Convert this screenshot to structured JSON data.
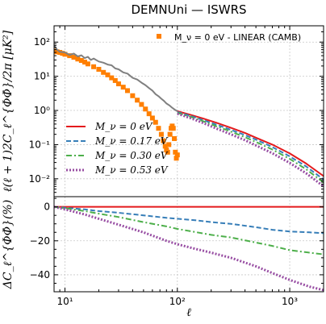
{
  "chart_data": {
    "title": "DEMNUni — ISWRS",
    "colors": {
      "massless": "#e41a1c",
      "nu017": "#377eb8",
      "nu030": "#4daf4a",
      "nu053": "#984ea3",
      "linear": "#ff7f00",
      "nbody_grey": "#808080"
    },
    "top_panel": {
      "type": "line",
      "ylabel": "ℓ(ℓ + 1)2C_ℓ^{ΦΦ̇}/2π [μK²]",
      "xscale": "log",
      "yscale": "log",
      "xlim": [
        8,
        2000
      ],
      "ylim": [
        0.003,
        300
      ],
      "x_ticks": [
        "10¹",
        "10²",
        "10³"
      ],
      "y_ticks": [
        "10⁻²",
        "10⁻¹",
        "10⁰",
        "10¹",
        "10²"
      ],
      "grid": true,
      "legend_upper": "M_ν = 0 eV - LINEAR (CAMB)",
      "legend_lower": [
        "M_ν = 0 eV",
        "M_ν = 0.17 eV",
        "M_ν = 0.30 eV",
        "M_ν = 0.53 eV"
      ],
      "series": [
        {
          "name": "M_ν = 0 eV - LINEAR (CAMB)",
          "style": "squares",
          "color_key": "linear",
          "x": [
            8,
            8.5,
            9,
            9.5,
            10,
            11,
            12,
            13,
            14,
            15,
            16,
            18,
            20,
            22,
            24,
            26,
            28,
            30,
            33,
            36,
            40,
            44,
            48,
            52,
            56,
            60,
            64,
            68,
            72,
            75,
            78,
            80,
            82,
            84,
            86,
            88,
            90,
            92,
            94,
            96,
            98,
            100
          ],
          "y": [
            55,
            52,
            50,
            47,
            44,
            40,
            36,
            32,
            29,
            26,
            23,
            19,
            16,
            13,
            11,
            9,
            7.5,
            6,
            4.8,
            3.8,
            2.7,
            2.0,
            1.5,
            1.1,
            0.8,
            0.6,
            0.45,
            0.3,
            0.2,
            0.13,
            0.09,
            0.07,
            0.06,
            0.1,
            0.2,
            0.3,
            0.35,
            0.3,
            0.15,
            0.06,
            0.04,
            0.05
          ]
        },
        {
          "name": "",
          "style": "solid",
          "color_key": "nbody_grey",
          "x": [
            8,
            8.5,
            9,
            10,
            11,
            12,
            13,
            14,
            15,
            16,
            17,
            18,
            20,
            22,
            24,
            26,
            28,
            30,
            33,
            36,
            40,
            44,
            48,
            52,
            56,
            60,
            64,
            68,
            72,
            76,
            80,
            85,
            90,
            95,
            100
          ],
          "y": [
            80,
            60,
            52,
            50,
            42,
            46,
            38,
            41,
            34,
            37,
            30,
            33,
            27,
            25,
            22,
            21,
            17,
            16,
            13,
            12,
            9,
            8,
            6.5,
            5.5,
            4.5,
            3.8,
            3.0,
            2.6,
            2.2,
            1.9,
            1.6,
            1.4,
            1.2,
            1.05,
            0.95
          ]
        },
        {
          "name": "M_ν = 0 eV",
          "style": "solid",
          "color_key": "massless",
          "x": [
            100,
            130,
            170,
            220,
            300,
            400,
            500,
            700,
            1000,
            1400,
            2000
          ],
          "y": [
            0.95,
            0.75,
            0.58,
            0.44,
            0.31,
            0.22,
            0.16,
            0.1,
            0.055,
            0.028,
            0.012
          ]
        },
        {
          "name": "M_ν = 0.17 eV",
          "style": "dashed",
          "color_key": "nu017",
          "x": [
            100,
            130,
            170,
            220,
            300,
            400,
            500,
            700,
            1000,
            1400,
            2000
          ],
          "y": [
            0.9,
            0.7,
            0.52,
            0.39,
            0.27,
            0.19,
            0.14,
            0.085,
            0.045,
            0.023,
            0.0095
          ]
        },
        {
          "name": "M_ν = 0.30 eV",
          "style": "dashdot",
          "color_key": "nu030",
          "x": [
            100,
            130,
            170,
            220,
            300,
            400,
            500,
            700,
            1000,
            1400,
            2000
          ],
          "y": [
            0.85,
            0.66,
            0.48,
            0.35,
            0.24,
            0.165,
            0.12,
            0.072,
            0.038,
            0.019,
            0.0078
          ]
        },
        {
          "name": "M_ν = 0.53 eV",
          "style": "dotted",
          "color_key": "nu053",
          "x": [
            100,
            130,
            170,
            220,
            300,
            400,
            500,
            700,
            1000,
            1400,
            2000
          ],
          "y": [
            0.8,
            0.6,
            0.43,
            0.3,
            0.2,
            0.135,
            0.095,
            0.056,
            0.029,
            0.0145,
            0.006
          ]
        }
      ]
    },
    "bottom_panel": {
      "type": "line",
      "xlabel": "ℓ",
      "ylabel": "ΔC_ℓ^{ΦΦ̇}(%)",
      "xscale": "log",
      "xlim": [
        8,
        2000
      ],
      "ylim": [
        -50,
        6
      ],
      "x_ticks": [
        "10¹",
        "10²",
        "10³"
      ],
      "y_ticks": [
        "0",
        "−20",
        "−40"
      ],
      "grid": true,
      "series": [
        {
          "name": "M_ν = 0 eV",
          "style": "solid",
          "color_key": "massless",
          "x": [
            8,
            2000
          ],
          "y": [
            0,
            0
          ]
        },
        {
          "name": "M_ν = 0.17 eV",
          "style": "dashed",
          "color_key": "nu017",
          "x": [
            8,
            10,
            15,
            20,
            30,
            50,
            80,
            100,
            150,
            200,
            300,
            500,
            700,
            1000,
            1500,
            2000
          ],
          "y": [
            0,
            -0.5,
            -1.5,
            -2.5,
            -3.5,
            -5,
            -6.5,
            -7,
            -8,
            -9,
            -10,
            -12,
            -13.5,
            -14.5,
            -15,
            -15.5
          ]
        },
        {
          "name": "M_ν = 0.30 eV",
          "style": "dashdot",
          "color_key": "nu030",
          "x": [
            8,
            10,
            15,
            20,
            30,
            50,
            80,
            100,
            150,
            200,
            300,
            500,
            700,
            1000,
            1500,
            2000
          ],
          "y": [
            0,
            -0.8,
            -2.5,
            -4,
            -6,
            -9,
            -11.5,
            -13,
            -15,
            -16.5,
            -18,
            -21,
            -23,
            -25.5,
            -27,
            -28
          ]
        },
        {
          "name": "M_ν = 0.53 eV",
          "style": "dotted",
          "color_key": "nu053",
          "x": [
            8,
            10,
            15,
            20,
            30,
            50,
            80,
            100,
            150,
            200,
            300,
            500,
            700,
            1000,
            1500,
            2000
          ],
          "y": [
            0,
            -1.5,
            -4.5,
            -7,
            -10.5,
            -15,
            -20,
            -22,
            -25,
            -27,
            -30,
            -35,
            -39,
            -43,
            -47,
            -49
          ]
        }
      ]
    }
  }
}
